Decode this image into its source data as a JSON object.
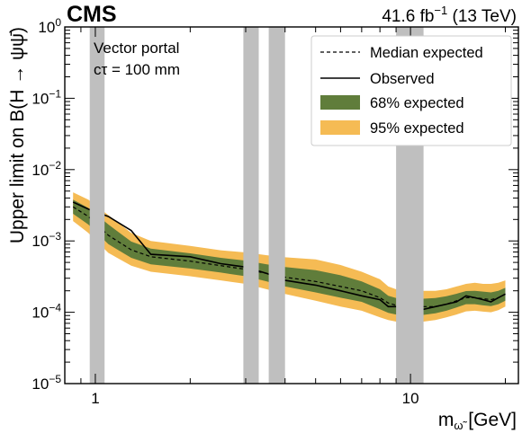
{
  "header": {
    "experiment": "CMS",
    "luminosity": "41.6 fb",
    "lumi_exp": "−1",
    "energy": "(13 TeV)"
  },
  "annotation": {
    "line1": "Vector portal",
    "line2": "cτ = 100 mm"
  },
  "colors": {
    "band68": "#607d3b",
    "band95": "#f5bb54",
    "veto": "#bfbfbf",
    "observed": "#000000",
    "expected": "#000000"
  },
  "chart_data": {
    "type": "line",
    "title": "",
    "xlabel": "m",
    "xlabel_sub": "ω̃",
    "xlabel_unit": " [GeV]",
    "ylabel": "Upper limit on B(H → ψψ̄)",
    "xscale": "log",
    "yscale": "log",
    "xlim": [
      0.8,
      22
    ],
    "ylim": [
      1e-05,
      1
    ],
    "x_tick_labels": [
      "1",
      "10"
    ],
    "x_ticks": [
      1,
      10
    ],
    "y_ticks": [
      1e-05,
      0.0001,
      0.001,
      0.01,
      0.1,
      1
    ],
    "y_tick_labels": [
      {
        "base": "10",
        "exp": "−5"
      },
      {
        "base": "10",
        "exp": "−4"
      },
      {
        "base": "10",
        "exp": "−3"
      },
      {
        "base": "10",
        "exp": "−2"
      },
      {
        "base": "10",
        "exp": "−1"
      },
      {
        "base": "10",
        "exp": "0"
      }
    ],
    "legend": {
      "placement": "top-right",
      "entries": [
        {
          "label": "Median expected",
          "style": "dashed"
        },
        {
          "label": "Observed",
          "style": "solid"
        },
        {
          "label": "68% expected",
          "style": "band68"
        },
        {
          "label": "95% expected",
          "style": "band95"
        }
      ]
    },
    "veto_bands": [
      [
        0.96,
        1.07
      ],
      [
        2.95,
        3.3
      ],
      [
        3.55,
        4.0
      ],
      [
        9.0,
        11.0
      ]
    ],
    "x": [
      0.85,
      0.95,
      1.1,
      1.3,
      1.5,
      2.0,
      2.5,
      3.0,
      3.5,
      4.0,
      5.0,
      6.0,
      7.0,
      8.0,
      8.5,
      9.0,
      10.0,
      11.0,
      12.0,
      13.0,
      14.0,
      15.0,
      16.0,
      17.0,
      18.0,
      19.0,
      20.0
    ],
    "series": [
      {
        "name": "Observed",
        "values": [
          0.0035,
          0.0028,
          0.0022,
          0.0014,
          0.00065,
          0.0006,
          0.00048,
          0.00043,
          0.00035,
          0.00028,
          0.00024,
          0.0002,
          0.00017,
          0.00015,
          0.00012,
          0.00012,
          0.00011,
          0.00011,
          0.00012,
          0.00013,
          0.00014,
          0.00017,
          0.00016,
          0.00015,
          0.00014,
          0.00016,
          0.00018
        ]
      },
      {
        "name": "Median expected",
        "values": [
          0.003,
          0.0022,
          0.0012,
          0.00075,
          0.0006,
          0.00052,
          0.00045,
          0.0004,
          0.00035,
          0.00031,
          0.00027,
          0.00023,
          0.0002,
          0.00016,
          0.000135,
          0.000125,
          0.00012,
          0.00012,
          0.00012,
          0.00013,
          0.000145,
          0.00016,
          0.00016,
          0.000155,
          0.00015,
          0.00016,
          0.00018
        ]
      }
    ],
    "band68": {
      "lower": [
        0.0024,
        0.0017,
        0.0009,
        0.00058,
        0.00047,
        0.00041,
        0.00036,
        0.00032,
        0.00027,
        0.00023,
        0.00019,
        0.00016,
        0.00014,
        0.00011,
        9.8e-05,
        9.3e-05,
        9.2e-05,
        9.2e-05,
        9.7e-05,
        0.000105,
        0.000117,
        0.00013,
        0.00013,
        0.000125,
        0.000122,
        0.00013,
        0.000145
      ],
      "upper": [
        0.0038,
        0.0029,
        0.0017,
        0.00098,
        0.00078,
        0.00067,
        0.00058,
        0.00053,
        0.00047,
        0.00043,
        0.00039,
        0.00033,
        0.00027,
        0.00021,
        0.00017,
        0.000158,
        0.000155,
        0.000155,
        0.000158,
        0.000168,
        0.000182,
        0.000198,
        0.0002,
        0.000195,
        0.00019,
        0.0002,
        0.00022
      ]
    },
    "band95": {
      "lower": [
        0.0019,
        0.0013,
        0.00068,
        0.00045,
        0.00037,
        0.00032,
        0.00028,
        0.00025,
        0.00021,
        0.00018,
        0.000145,
        0.00012,
        0.000105,
        8.5e-05,
        7.8e-05,
        7.4e-05,
        7.3e-05,
        7.4e-05,
        7.8e-05,
        8.5e-05,
        9.3e-05,
        0.000103,
        0.000105,
        0.000102,
        0.0001,
        0.000107,
        0.00012
      ],
      "upper": [
        0.0048,
        0.0038,
        0.0023,
        0.0013,
        0.001,
        0.00085,
        0.00074,
        0.00069,
        0.00063,
        0.00059,
        0.00055,
        0.00046,
        0.00037,
        0.00029,
        0.00023,
        0.00021,
        0.00021,
        0.0002,
        0.0002,
        0.00021,
        0.00023,
        0.00025,
        0.00026,
        0.00025,
        0.00025,
        0.00026,
        0.00028
      ]
    }
  }
}
